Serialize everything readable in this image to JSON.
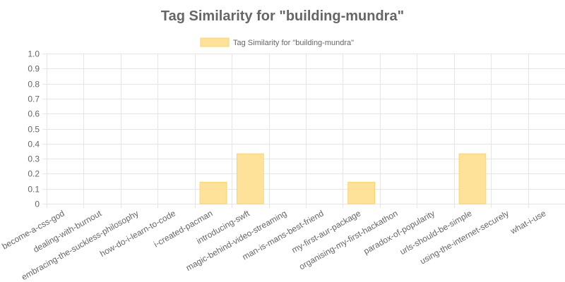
{
  "chart_data": {
    "type": "bar",
    "title": "Tag Similarity for \"building-mundra\"",
    "legend": {
      "position": "top",
      "entries": [
        "Tag Similarity for \"building-mundra\""
      ]
    },
    "categories": [
      "become-a-css-god",
      "dealing-with-burnout",
      "embracing-the-suckless-philosophy",
      "how-do-i-learn-to-code",
      "i-created-pacman",
      "introducing-swft",
      "magic-behind-video-streaming",
      "man-is-mans-best-friend",
      "my-first-aur-package",
      "organising-my-first-hackathon",
      "paradox-of-popularity",
      "urls-should-be-simple",
      "using-the-internet-securely",
      "what-i-use"
    ],
    "series": [
      {
        "name": "Tag Similarity for \"building-mundra\"",
        "values": [
          0,
          0,
          0,
          0,
          0.143,
          0.333,
          0,
          0,
          0.143,
          0,
          0,
          0.333,
          0,
          0
        ]
      }
    ],
    "ylim": [
      0,
      1
    ],
    "yticks": [
      "0",
      "0.1",
      "0.2",
      "0.3",
      "0.4",
      "0.5",
      "0.6",
      "0.7",
      "0.8",
      "0.9",
      "1.0"
    ],
    "grid": true,
    "colors": {
      "bar_fill": "#ffe299",
      "bar_border": "#ffd36b",
      "text": "#666666",
      "grid": "#e5e5e5"
    }
  }
}
